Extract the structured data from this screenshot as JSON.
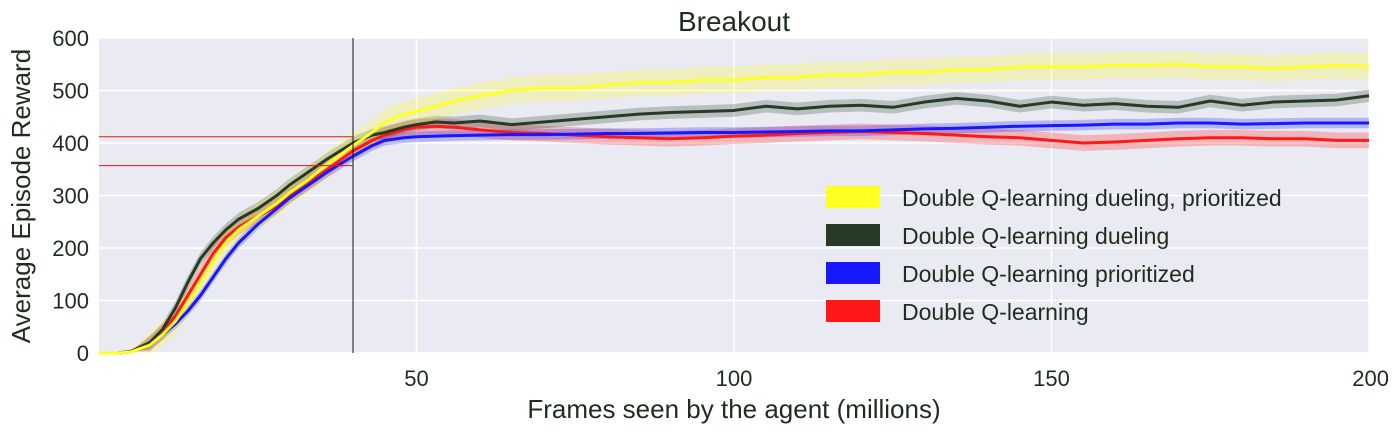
{
  "chart_data": {
    "type": "line",
    "title": "Breakout",
    "xlabel": "Frames seen by the agent (millions)",
    "ylabel": "Average Episode Reward",
    "xlim": [
      0,
      200
    ],
    "ylim": [
      0,
      600
    ],
    "xticks": [
      "50",
      "100",
      "150",
      "200"
    ],
    "yticks": [
      "0",
      "100",
      "200",
      "300",
      "400",
      "500",
      "600"
    ],
    "grid": true,
    "legend_position": "bottom-right",
    "reference_lines": {
      "vertical_x": 40,
      "horizontal_y": [
        412,
        357
      ]
    },
    "x": [
      0,
      3,
      5,
      8,
      10,
      12,
      14,
      16,
      18,
      20,
      22,
      25,
      28,
      30,
      33,
      36,
      40,
      43,
      45,
      48,
      50,
      53,
      56,
      60,
      65,
      70,
      75,
      80,
      85,
      90,
      95,
      100,
      105,
      110,
      115,
      120,
      125,
      130,
      135,
      140,
      145,
      150,
      155,
      160,
      165,
      170,
      175,
      180,
      185,
      190,
      195,
      200
    ],
    "series": [
      {
        "name": "Double Q-learning dueling, prioritized",
        "color": "#ffff22",
        "values": [
          0,
          0,
          2,
          15,
          35,
          60,
          95,
          135,
          175,
          210,
          235,
          260,
          285,
          305,
          330,
          360,
          395,
          420,
          440,
          455,
          460,
          470,
          480,
          490,
          500,
          505,
          505,
          510,
          515,
          515,
          520,
          520,
          525,
          525,
          530,
          530,
          535,
          535,
          540,
          540,
          545,
          545,
          545,
          548,
          548,
          550,
          545,
          545,
          542,
          545,
          548,
          545
        ],
        "band": 25
      },
      {
        "name": "Double Q-learning dueling",
        "color": "#263a26",
        "values": [
          0,
          0,
          3,
          20,
          45,
          85,
          135,
          180,
          210,
          235,
          255,
          275,
          300,
          320,
          345,
          370,
          400,
          415,
          420,
          430,
          435,
          440,
          438,
          442,
          435,
          440,
          445,
          450,
          455,
          458,
          460,
          462,
          470,
          465,
          470,
          472,
          468,
          478,
          485,
          480,
          470,
          478,
          472,
          475,
          470,
          468,
          480,
          472,
          478,
          480,
          482,
          490
        ],
        "band": 12
      },
      {
        "name": "Double Q-learning prioritized",
        "color": "#1818ff",
        "values": [
          0,
          0,
          2,
          15,
          35,
          55,
          80,
          110,
          145,
          180,
          210,
          245,
          275,
          295,
          320,
          345,
          375,
          395,
          405,
          410,
          412,
          413,
          414,
          415,
          416,
          416,
          417,
          418,
          418,
          419,
          420,
          420,
          421,
          422,
          423,
          423,
          425,
          427,
          428,
          430,
          432,
          433,
          434,
          436,
          436,
          438,
          438,
          436,
          437,
          438,
          438,
          438
        ],
        "band": 10
      },
      {
        "name": "Double Q-learning",
        "color": "#ff1818",
        "values": [
          0,
          0,
          3,
          18,
          40,
          70,
          110,
          150,
          190,
          220,
          240,
          260,
          280,
          300,
          325,
          350,
          385,
          405,
          415,
          425,
          430,
          432,
          430,
          425,
          420,
          418,
          415,
          412,
          410,
          408,
          410,
          413,
          415,
          418,
          420,
          422,
          420,
          418,
          415,
          412,
          410,
          405,
          400,
          402,
          405,
          408,
          410,
          410,
          408,
          408,
          405,
          405
        ],
        "band": 15
      }
    ]
  }
}
